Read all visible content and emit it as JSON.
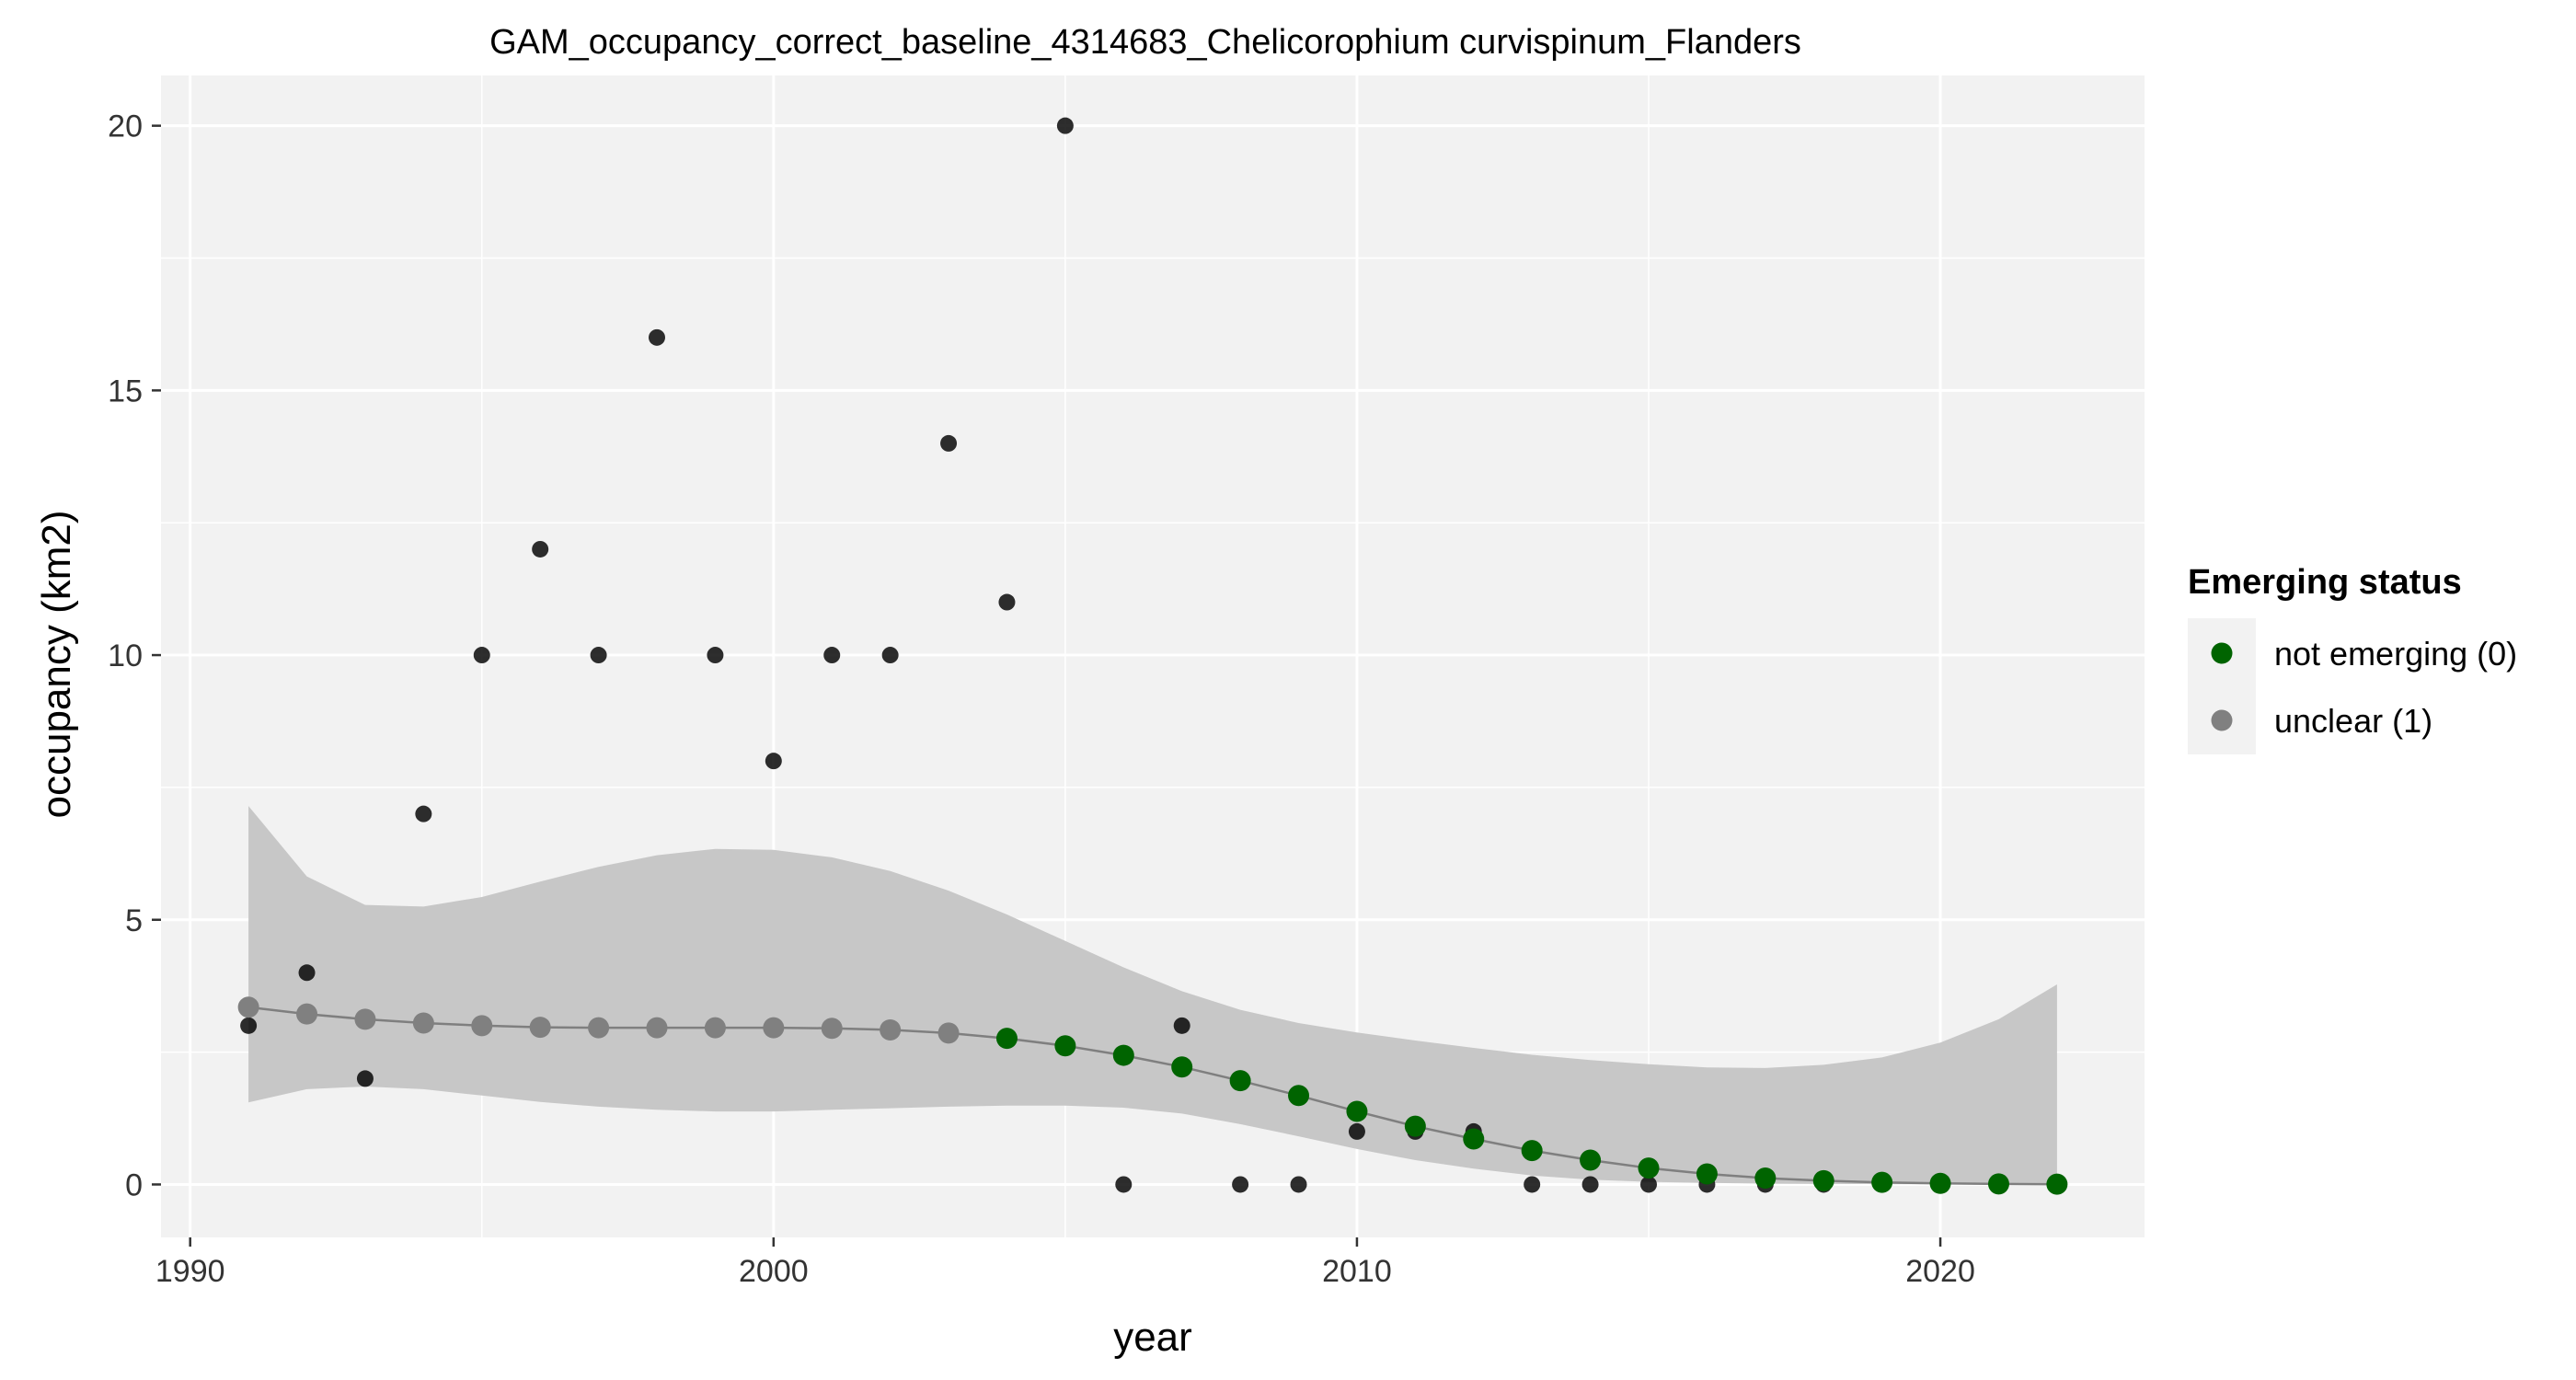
{
  "chart_data": {
    "type": "scatter",
    "title": "GAM_occupancy_correct_baseline_4314683_Chelicorophium curvispinum_Flanders",
    "xlabel": "year",
    "ylabel": "occupancy (km2)",
    "xlim": [
      1989.5,
      2023.5
    ],
    "ylim": [
      -1.0,
      20.95
    ],
    "xticks": [
      1990,
      2000,
      2010,
      2020
    ],
    "yticks": [
      0,
      5,
      10,
      15,
      20
    ],
    "grid": true,
    "colors": {
      "panel": "#F2F2F2",
      "grid": "#FFFFFF",
      "ribbon": "#C4C4C4",
      "line": "#7F7F7F",
      "observed": "#000000",
      "not_emerging": "#006400",
      "unclear": "#808080"
    },
    "observed": {
      "x": [
        1991,
        1992,
        1993,
        1994,
        1995,
        1996,
        1997,
        1998,
        1999,
        2000,
        2001,
        2002,
        2003,
        2004,
        2005,
        2006,
        2007,
        2008,
        2009,
        2010,
        2011,
        2012,
        2013,
        2014,
        2015,
        2016,
        2017,
        2018
      ],
      "y": [
        3,
        4,
        2,
        7,
        10,
        12,
        10,
        16,
        10,
        8,
        10,
        10,
        14,
        11,
        20,
        0,
        3,
        0,
        0,
        1,
        1,
        1,
        0,
        0,
        0,
        0,
        0,
        0
      ]
    },
    "fit": {
      "x": [
        1991,
        1992,
        1993,
        1994,
        1995,
        1996,
        1997,
        1998,
        1999,
        2000,
        2001,
        2002,
        2003,
        2004,
        2005,
        2006,
        2007,
        2008,
        2009,
        2010,
        2011,
        2012,
        2013,
        2014,
        2015,
        2016,
        2017,
        2018,
        2019,
        2020,
        2021,
        2022
      ],
      "y": [
        3.35,
        3.22,
        3.12,
        3.05,
        3.0,
        2.97,
        2.96,
        2.96,
        2.96,
        2.96,
        2.95,
        2.92,
        2.86,
        2.76,
        2.62,
        2.44,
        2.22,
        1.96,
        1.68,
        1.38,
        1.1,
        0.86,
        0.64,
        0.46,
        0.31,
        0.2,
        0.12,
        0.07,
        0.04,
        0.02,
        0.01,
        0.005
      ],
      "lower": [
        1.55,
        1.8,
        1.85,
        1.8,
        1.68,
        1.56,
        1.47,
        1.41,
        1.38,
        1.38,
        1.41,
        1.44,
        1.47,
        1.49,
        1.49,
        1.45,
        1.34,
        1.14,
        0.91,
        0.67,
        0.46,
        0.3,
        0.17,
        0.09,
        0.05,
        0.03,
        0.015,
        0.01,
        0.006,
        0.003,
        0.002,
        0.001
      ],
      "upper": [
        7.15,
        5.82,
        5.28,
        5.25,
        5.43,
        5.72,
        6.0,
        6.22,
        6.34,
        6.32,
        6.18,
        5.92,
        5.55,
        5.1,
        4.6,
        4.1,
        3.65,
        3.3,
        3.05,
        2.87,
        2.72,
        2.58,
        2.45,
        2.35,
        2.27,
        2.21,
        2.2,
        2.26,
        2.4,
        2.68,
        3.12,
        3.78
      ],
      "status": [
        "unclear (1)",
        "unclear (1)",
        "unclear (1)",
        "unclear (1)",
        "unclear (1)",
        "unclear (1)",
        "unclear (1)",
        "unclear (1)",
        "unclear (1)",
        "unclear (1)",
        "unclear (1)",
        "unclear (1)",
        "unclear (1)",
        "not emerging (0)",
        "not emerging (0)",
        "not emerging (0)",
        "not emerging (0)",
        "not emerging (0)",
        "not emerging (0)",
        "not emerging (0)",
        "not emerging (0)",
        "not emerging (0)",
        "not emerging (0)",
        "not emerging (0)",
        "not emerging (0)",
        "not emerging (0)",
        "not emerging (0)",
        "not emerging (0)",
        "not emerging (0)",
        "not emerging (0)",
        "not emerging (0)",
        "not emerging (0)"
      ]
    },
    "legend": {
      "title": "Emerging status",
      "placement": "right",
      "items": [
        {
          "label": "not emerging (0)",
          "color": "#006400"
        },
        {
          "label": "unclear (1)",
          "color": "#808080"
        }
      ]
    }
  }
}
